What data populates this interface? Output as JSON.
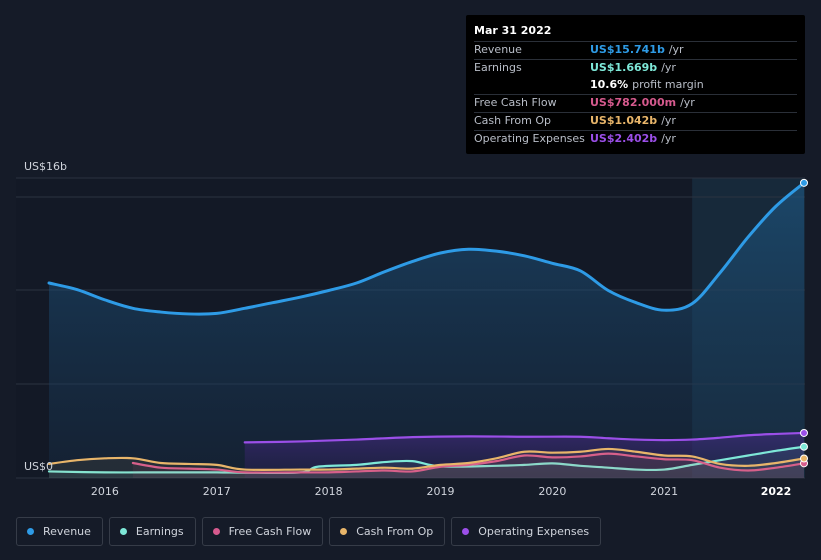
{
  "tooltip": {
    "date": "Mar 31 2022",
    "rows": [
      {
        "label": "Revenue",
        "value": "US$15.741b",
        "unit": "/yr",
        "color": "#2e9be6"
      },
      {
        "label": "Earnings",
        "value": "US$1.669b",
        "unit": "/yr",
        "color": "#7ee8d8"
      },
      {
        "label": "",
        "value": "10.6%",
        "unit": "profit margin",
        "color": "#ffffff"
      },
      {
        "label": "Free Cash Flow",
        "value": "US$782.000m",
        "unit": "/yr",
        "color": "#d65a8e"
      },
      {
        "label": "Cash From Op",
        "value": "US$1.042b",
        "unit": "/yr",
        "color": "#e8b56a"
      },
      {
        "label": "Operating Expenses",
        "value": "US$2.402b",
        "unit": "/yr",
        "color": "#9b4fe8"
      }
    ]
  },
  "legend": [
    {
      "label": "Revenue",
      "color": "#2e9be6"
    },
    {
      "label": "Earnings",
      "color": "#7ee8d8"
    },
    {
      "label": "Free Cash Flow",
      "color": "#d65a8e"
    },
    {
      "label": "Cash From Op",
      "color": "#e8b56a"
    },
    {
      "label": "Operating Expenses",
      "color": "#9b4fe8"
    }
  ],
  "chart_data": {
    "type": "line",
    "y_axis_labels": [
      "US$16b",
      "US$0"
    ],
    "ylim": [
      0,
      16
    ],
    "xlim": [
      2015.5,
      2022.25
    ],
    "x_ticks": [
      2016,
      2017,
      2018,
      2019,
      2020,
      2021,
      2022
    ],
    "x_tick_labels": [
      "2016",
      "2017",
      "2018",
      "2019",
      "2020",
      "2021",
      "2022"
    ],
    "highlight_from": 2021.25,
    "series": [
      {
        "name": "Revenue",
        "color": "#2e9be6",
        "filled": true,
        "points": [
          [
            2015.5,
            10.4
          ],
          [
            2015.75,
            10.05
          ],
          [
            2016,
            9.5
          ],
          [
            2016.25,
            9.05
          ],
          [
            2016.5,
            8.85
          ],
          [
            2016.75,
            8.75
          ],
          [
            2017,
            8.78
          ],
          [
            2017.25,
            9.05
          ],
          [
            2017.5,
            9.35
          ],
          [
            2017.75,
            9.65
          ],
          [
            2018,
            10.0
          ],
          [
            2018.25,
            10.4
          ],
          [
            2018.5,
            11.0
          ],
          [
            2018.75,
            11.55
          ],
          [
            2019,
            12.0
          ],
          [
            2019.25,
            12.2
          ],
          [
            2019.5,
            12.1
          ],
          [
            2019.75,
            11.85
          ],
          [
            2020,
            11.45
          ],
          [
            2020.25,
            11.05
          ],
          [
            2020.5,
            10.0
          ],
          [
            2020.75,
            9.35
          ],
          [
            2021,
            8.95
          ],
          [
            2021.25,
            9.3
          ],
          [
            2021.5,
            10.95
          ],
          [
            2021.75,
            12.85
          ],
          [
            2022,
            14.5
          ],
          [
            2022.25,
            15.741
          ]
        ]
      },
      {
        "name": "Operating Expenses",
        "color": "#9b4fe8",
        "filled": true,
        "points": [
          [
            2017.25,
            1.9
          ],
          [
            2017.75,
            1.95
          ],
          [
            2018.25,
            2.05
          ],
          [
            2018.75,
            2.18
          ],
          [
            2019.25,
            2.22
          ],
          [
            2019.75,
            2.2
          ],
          [
            2020.25,
            2.2
          ],
          [
            2020.5,
            2.12
          ],
          [
            2020.75,
            2.05
          ],
          [
            2021,
            2.02
          ],
          [
            2021.25,
            2.05
          ],
          [
            2021.5,
            2.15
          ],
          [
            2021.75,
            2.28
          ],
          [
            2022,
            2.35
          ],
          [
            2022.25,
            2.402
          ]
        ]
      },
      {
        "name": "Earnings",
        "color": "#7ee8d8",
        "filled": false,
        "points": [
          [
            2015.5,
            0.35
          ],
          [
            2016,
            0.3
          ],
          [
            2016.5,
            0.3
          ],
          [
            2017,
            0.3
          ],
          [
            2017.25,
            0.28
          ],
          [
            2017.75,
            0.3
          ],
          [
            2017.9,
            0.6
          ],
          [
            2018.25,
            0.7
          ],
          [
            2018.5,
            0.85
          ],
          [
            2018.75,
            0.9
          ],
          [
            2019,
            0.62
          ],
          [
            2019.5,
            0.65
          ],
          [
            2019.75,
            0.7
          ],
          [
            2020,
            0.78
          ],
          [
            2020.25,
            0.65
          ],
          [
            2020.5,
            0.55
          ],
          [
            2020.75,
            0.45
          ],
          [
            2021,
            0.45
          ],
          [
            2021.25,
            0.7
          ],
          [
            2021.5,
            0.95
          ],
          [
            2021.75,
            1.2
          ],
          [
            2022,
            1.45
          ],
          [
            2022.25,
            1.669
          ]
        ]
      },
      {
        "name": "Free Cash Flow",
        "color": "#d65a8e",
        "filled": false,
        "points": [
          [
            2016.25,
            0.8
          ],
          [
            2016.5,
            0.55
          ],
          [
            2016.75,
            0.5
          ],
          [
            2017,
            0.45
          ],
          [
            2017.25,
            0.3
          ],
          [
            2017.75,
            0.3
          ],
          [
            2018,
            0.3
          ],
          [
            2018.25,
            0.35
          ],
          [
            2018.5,
            0.4
          ],
          [
            2018.75,
            0.35
          ],
          [
            2019,
            0.6
          ],
          [
            2019.25,
            0.7
          ],
          [
            2019.5,
            0.9
          ],
          [
            2019.75,
            1.2
          ],
          [
            2020,
            1.1
          ],
          [
            2020.25,
            1.15
          ],
          [
            2020.5,
            1.3
          ],
          [
            2020.75,
            1.15
          ],
          [
            2021,
            1.0
          ],
          [
            2021.25,
            0.95
          ],
          [
            2021.5,
            0.55
          ],
          [
            2021.75,
            0.4
          ],
          [
            2022,
            0.55
          ],
          [
            2022.25,
            0.782
          ]
        ]
      },
      {
        "name": "Cash From Op",
        "color": "#e8b56a",
        "filled": false,
        "points": [
          [
            2015.5,
            0.75
          ],
          [
            2015.75,
            0.95
          ],
          [
            2016,
            1.05
          ],
          [
            2016.25,
            1.05
          ],
          [
            2016.5,
            0.8
          ],
          [
            2016.75,
            0.75
          ],
          [
            2017,
            0.7
          ],
          [
            2017.25,
            0.45
          ],
          [
            2017.75,
            0.45
          ],
          [
            2018,
            0.45
          ],
          [
            2018.25,
            0.5
          ],
          [
            2018.5,
            0.55
          ],
          [
            2018.75,
            0.5
          ],
          [
            2019,
            0.7
          ],
          [
            2019.25,
            0.8
          ],
          [
            2019.5,
            1.05
          ],
          [
            2019.75,
            1.4
          ],
          [
            2020,
            1.35
          ],
          [
            2020.25,
            1.4
          ],
          [
            2020.5,
            1.55
          ],
          [
            2020.75,
            1.4
          ],
          [
            2021,
            1.2
          ],
          [
            2021.25,
            1.15
          ],
          [
            2021.5,
            0.75
          ],
          [
            2021.75,
            0.65
          ],
          [
            2022,
            0.8
          ],
          [
            2022.25,
            1.042
          ]
        ]
      }
    ]
  }
}
